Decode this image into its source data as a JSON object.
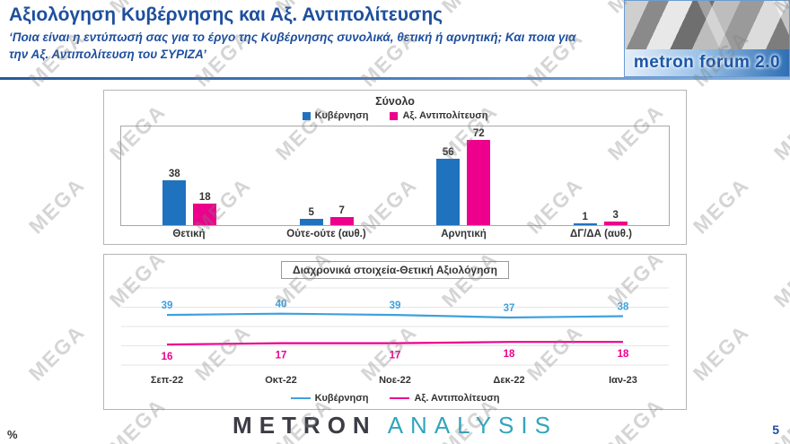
{
  "header": {
    "title": "Αξιολόγηση Κυβέρνησης και Αξ. Αντιπολίτευσης",
    "subtitle": "‘Ποια είναι η εντύπωσή σας για το έργο της Κυβέρνησης συνολικά, θετική ή αρνητική; Και ποια για την Αξ. Αντιπολίτευση του ΣΥΡΙΖΑ’",
    "logo_text": "metron forum 2.0"
  },
  "watermark": {
    "text": "MEGA"
  },
  "footer": {
    "left_label": "%",
    "brand_part1": "METRON",
    "brand_part2": "ANALYSIS",
    "page_number": "5"
  },
  "colors": {
    "title_blue": "#1d4f9e",
    "government_blue": "#1f72be",
    "opposition_pink": "#ec008c",
    "line_blue": "#3fa0dc",
    "brand_teal": "#2fa6bd"
  },
  "chart_data": [
    {
      "type": "bar",
      "title": "Σύνολο",
      "categories": [
        "Θετική",
        "Ούτε-ούτε (αυθ.)",
        "Αρνητική",
        "ΔΓ/ΔΑ (αυθ.)"
      ],
      "series": [
        {
          "name": "Κυβέρνηση",
          "color": "#1f72be",
          "values": [
            38,
            5,
            56,
            1
          ]
        },
        {
          "name": "Αξ. Αντιπολίτευση",
          "color": "#ec008c",
          "values": [
            18,
            7,
            72,
            3
          ]
        }
      ],
      "ylim": [
        0,
        80
      ],
      "legend_position": "top",
      "grid": false
    },
    {
      "type": "line",
      "title": "Διαχρονικά στοιχεία-Θετική Αξιολόγηση",
      "x": [
        "Σεπ-22",
        "Οκτ-22",
        "Νοε-22",
        "Δεκ-22",
        "Ιαν-23"
      ],
      "series": [
        {
          "name": "Κυβέρνηση",
          "color": "#3fa0dc",
          "values": [
            39,
            40,
            39,
            37,
            38
          ]
        },
        {
          "name": "Αξ. Αντιπολίτευση",
          "color": "#ec008c",
          "values": [
            16,
            17,
            17,
            18,
            18
          ]
        }
      ],
      "ylim": [
        0,
        60
      ],
      "legend_position": "bottom",
      "grid": true
    }
  ]
}
